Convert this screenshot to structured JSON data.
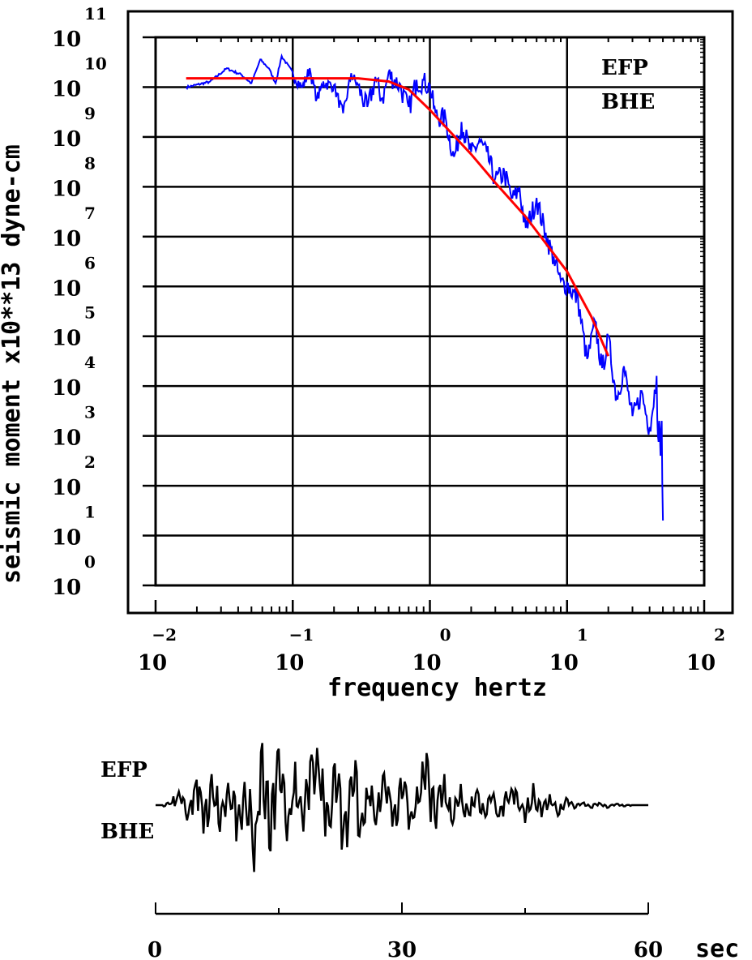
{
  "chart_data": [
    {
      "type": "line",
      "title": "",
      "xlabel": "frequency hertz",
      "ylabel": "seismic moment x10**13 dyne-cm",
      "x_scale": "log",
      "y_scale": "log",
      "xlim": [
        0.01,
        100
      ],
      "ylim": [
        1,
        100000000000
      ],
      "x_ticks": [
        {
          "base": "10",
          "exp": "−2"
        },
        {
          "base": "10",
          "exp": "−1"
        },
        {
          "base": "10",
          "exp": "0"
        },
        {
          "base": "10",
          "exp": "1"
        },
        {
          "base": "10",
          "exp": "2"
        }
      ],
      "y_ticks": [
        {
          "base": "10",
          "exp": "0"
        },
        {
          "base": "10",
          "exp": "1"
        },
        {
          "base": "10",
          "exp": "2"
        },
        {
          "base": "10",
          "exp": "3"
        },
        {
          "base": "10",
          "exp": "4"
        },
        {
          "base": "10",
          "exp": "5"
        },
        {
          "base": "10",
          "exp": "6"
        },
        {
          "base": "10",
          "exp": "7"
        },
        {
          "base": "10",
          "exp": "8"
        },
        {
          "base": "10",
          "exp": "9"
        },
        {
          "base": "10",
          "exp": "10"
        },
        {
          "base": "10",
          "exp": "11"
        }
      ],
      "grid": true,
      "annotations": [
        "EFP",
        "BHE"
      ],
      "series": [
        {
          "color": "#0000ff",
          "x": [
            0.0167,
            0.025,
            0.033,
            0.042,
            0.05,
            0.058,
            0.067,
            0.075,
            0.083,
            0.1,
            0.117,
            0.133,
            0.15,
            0.167,
            0.2,
            0.233,
            0.267,
            0.3,
            0.35,
            0.4,
            0.45,
            0.5,
            0.6,
            0.7,
            0.8,
            0.9,
            1.0,
            1.1,
            1.3,
            1.5,
            1.7,
            2.0,
            2.3,
            2.6,
            3.0,
            3.5,
            4.0,
            4.5,
            5.0,
            6.0,
            7.0,
            8.0,
            9.0,
            10.0,
            12.0,
            14.0,
            16.0,
            18.0,
            20.0,
            23.0,
            26.0,
            30.0,
            35.0,
            40.0,
            45.0,
            46.0,
            47.0,
            48.0,
            49.0,
            50.0
          ],
          "y": [
            10000000000.0,
            13000000000.0,
            24000000000.0,
            18000000000.0,
            12000000000.0,
            36000000000.0,
            24000000000.0,
            12000000000.0,
            42000000000.0,
            20000000000.0,
            10000000000.0,
            24000000000.0,
            6000000000.0,
            13000000000.0,
            11000000000.0,
            3000000000.0,
            19000000000.0,
            11000000000.0,
            4000000000.0,
            16000000000.0,
            6000000000.0,
            20000000000.0,
            12000000000.0,
            4000000000.0,
            14000000000.0,
            14000000000.0,
            11000000000.0,
            3000000000.0,
            2500000000.0,
            400000000.0,
            2000000000.0,
            500000000.0,
            900000000.0,
            500000000.0,
            150000000.0,
            200000000.0,
            60000000.0,
            100000000.0,
            15000000.0,
            60000000.0,
            12000000.0,
            4000000.0,
            1300000.0,
            1200000.0,
            600000.0,
            35000.0,
            200000.0,
            23000.0,
            100000.0,
            6000.0,
            25000.0,
            2500.0,
            8000.0,
            1500.0,
            16000.0,
            1000.0,
            2000.0,
            400,
            2000.0,
            20
          ],
          "style": "noisy"
        },
        {
          "color": "#ff0000",
          "x": [
            0.0167,
            0.05,
            0.1,
            0.3,
            0.5,
            0.7,
            1.0,
            1.3,
            2.0,
            3.0,
            5.0,
            10.0,
            15.0,
            20.0
          ],
          "y": [
            15000000000.0,
            15000000000.0,
            15000000000.0,
            15000000000.0,
            13000000000.0,
            9000000000.0,
            3500000000.0,
            1600000000.0,
            450000000.0,
            120000000.0,
            25000000.0,
            2000000.0,
            250000.0,
            40000.0
          ]
        }
      ]
    },
    {
      "type": "line",
      "title": "",
      "xlabel": "sec",
      "x_ticks": [
        "0",
        "30",
        "60"
      ],
      "xlim": [
        0,
        60
      ],
      "annotations": [
        "EFP",
        "BHE"
      ],
      "series": [
        {
          "color": "#000000",
          "x": [
            0,
            1,
            2,
            3,
            4,
            5,
            6,
            7,
            8,
            9,
            10,
            11,
            12,
            13,
            14,
            15,
            16,
            17,
            18,
            19,
            20,
            21,
            22,
            23,
            24,
            25,
            26,
            27,
            28,
            29,
            30,
            31,
            32,
            33,
            34,
            35,
            36,
            37,
            38,
            39,
            40,
            41,
            42,
            43,
            44,
            45,
            46,
            47,
            48,
            49,
            50,
            51,
            52,
            53,
            54,
            55,
            56,
            57,
            58,
            59,
            60
          ],
          "y": [
            0,
            0,
            0.05,
            0.2,
            -0.25,
            0.4,
            -0.5,
            0.6,
            -0.4,
            0.5,
            -0.6,
            0.3,
            -0.9,
            0.95,
            -0.7,
            0.9,
            -0.5,
            0.6,
            -0.35,
            0.8,
            0.95,
            -0.6,
            0.8,
            -0.95,
            0.9,
            -0.5,
            0.4,
            -0.3,
            0.6,
            -0.5,
            0.5,
            -0.35,
            0.3,
            0.85,
            -0.45,
            0.5,
            -0.3,
            0.35,
            -0.3,
            0.25,
            -0.2,
            0.2,
            -0.25,
            0.3,
            0.15,
            -0.2,
            0.3,
            -0.2,
            0.15,
            -0.15,
            0.1,
            -0.05,
            0.05,
            -0.05,
            0.04,
            -0.04,
            0.03,
            -0.02,
            0,
            0,
            0
          ],
          "style": "oscillating"
        }
      ]
    }
  ]
}
